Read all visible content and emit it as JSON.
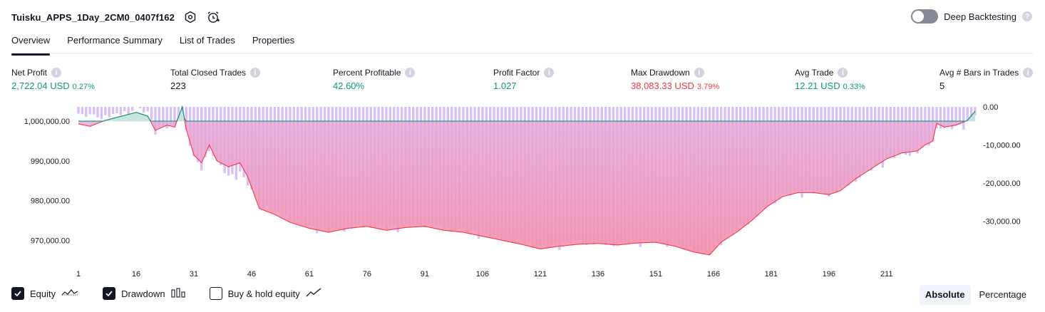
{
  "header": {
    "strategy_name": "Tuisku_APPS_1Day_2CM0_0407f162",
    "settings_icon": "settings-hexagon-icon",
    "alert_icon": "alarm-clock-plus-icon",
    "deep_backtesting_label": "Deep Backtesting",
    "deep_backtesting_enabled": false
  },
  "tabs": [
    {
      "label": "Overview",
      "active": true
    },
    {
      "label": "Performance Summary",
      "active": false
    },
    {
      "label": "List of Trades",
      "active": false
    },
    {
      "label": "Properties",
      "active": false
    }
  ],
  "metrics": {
    "net_profit": {
      "label": "Net Profit",
      "value": "2,722.04 USD",
      "pct": "0.27%"
    },
    "total_closed_trades": {
      "label": "Total Closed Trades",
      "value": "223"
    },
    "percent_profitable": {
      "label": "Percent Profitable",
      "value": "42.60%"
    },
    "profit_factor": {
      "label": "Profit Factor",
      "value": "1.027"
    },
    "max_drawdown": {
      "label": "Max Drawdown",
      "value": "38,083.33 USD",
      "pct": "3.79%"
    },
    "avg_trade": {
      "label": "Avg Trade",
      "value": "12.21 USD",
      "pct": "0.33%"
    },
    "avg_bars": {
      "label": "Avg # Bars in Trades",
      "value": "5"
    }
  },
  "colors": {
    "profit": "#089981",
    "loss": "#f23645",
    "equity_line": "#f23645",
    "equity_above_fill": "#b2dfd4",
    "drawdown_bar": "#d8bff5",
    "loss_fill_top": "#e7a6d8",
    "loss_fill_bottom": "#f48aa6"
  },
  "chart_data": {
    "type": "area",
    "x_ticks": [
      "1",
      "16",
      "31",
      "46",
      "61",
      "76",
      "91",
      "106",
      "121",
      "136",
      "151",
      "166",
      "181",
      "196",
      "211"
    ],
    "x_range": [
      1,
      223
    ],
    "left_axis": {
      "ticks": [
        "1,000,000.00",
        "990,000.00",
        "980,000.00",
        "970,000.00"
      ],
      "tick_values": [
        1000000,
        990000,
        980000,
        970000
      ],
      "range": [
        965200,
        1003600
      ],
      "baseline": 1000000
    },
    "right_axis": {
      "ticks": [
        "0.00",
        "-10,000.00",
        "-20,000.00",
        "-30,000.00"
      ],
      "tick_values": [
        0,
        -10000,
        -20000,
        -30000
      ],
      "range": [
        -40000,
        0
      ]
    },
    "series": [
      {
        "name": "Equity",
        "knots": [
          [
            1,
            999300
          ],
          [
            4,
            998700
          ],
          [
            8,
            1000200
          ],
          [
            12,
            1001200
          ],
          [
            16,
            1002200
          ],
          [
            19,
            1001300
          ],
          [
            21,
            997700
          ],
          [
            24,
            999000
          ],
          [
            26,
            998500
          ],
          [
            28,
            1003600
          ],
          [
            29,
            998000
          ],
          [
            31,
            991500
          ],
          [
            33,
            989500
          ],
          [
            35,
            994000
          ],
          [
            37,
            990000
          ],
          [
            40,
            988500
          ],
          [
            43,
            989500
          ],
          [
            45,
            986000
          ],
          [
            48,
            978000
          ],
          [
            52,
            976500
          ],
          [
            56,
            974500
          ],
          [
            61,
            973000
          ],
          [
            66,
            972000
          ],
          [
            71,
            973000
          ],
          [
            76,
            973500
          ],
          [
            81,
            972500
          ],
          [
            86,
            973200
          ],
          [
            91,
            973500
          ],
          [
            96,
            972500
          ],
          [
            101,
            972000
          ],
          [
            106,
            971000
          ],
          [
            111,
            970000
          ],
          [
            116,
            969000
          ],
          [
            121,
            967800
          ],
          [
            126,
            968500
          ],
          [
            131,
            969000
          ],
          [
            136,
            969200
          ],
          [
            141,
            968800
          ],
          [
            146,
            969300
          ],
          [
            151,
            969500
          ],
          [
            156,
            968500
          ],
          [
            161,
            967000
          ],
          [
            165,
            966300
          ],
          [
            168,
            969500
          ],
          [
            172,
            972000
          ],
          [
            176,
            975000
          ],
          [
            180,
            978500
          ],
          [
            184,
            981000
          ],
          [
            188,
            982000
          ],
          [
            192,
            982000
          ],
          [
            196,
            981500
          ],
          [
            199,
            982500
          ],
          [
            203,
            985500
          ],
          [
            207,
            988000
          ],
          [
            211,
            990500
          ],
          [
            215,
            992000
          ],
          [
            219,
            992500
          ],
          [
            221,
            994000
          ],
          [
            223,
            995000
          ],
          [
            224,
            999500
          ],
          [
            226,
            998500
          ],
          [
            229,
            999000
          ],
          [
            232,
            1000200
          ],
          [
            234,
            1002500
          ]
        ]
      },
      {
        "name": "Drawdown",
        "knots": [
          [
            1,
            -1800
          ],
          [
            5,
            -2000
          ],
          [
            8,
            -2200
          ],
          [
            12,
            -1500
          ],
          [
            16,
            0
          ],
          [
            19,
            -1200
          ],
          [
            21,
            -5500
          ],
          [
            24,
            -5000
          ],
          [
            26,
            -5000
          ],
          [
            28,
            0
          ],
          [
            29,
            -6000
          ],
          [
            31,
            -13000
          ],
          [
            33,
            -16000
          ],
          [
            35,
            -10500
          ],
          [
            37,
            -14000
          ],
          [
            40,
            -18000
          ],
          [
            43,
            -17000
          ],
          [
            45,
            -20000
          ],
          [
            48,
            -25000
          ],
          [
            52,
            -27000
          ],
          [
            56,
            -29000
          ],
          [
            61,
            -31000
          ],
          [
            66,
            -32000
          ],
          [
            71,
            -31500
          ],
          [
            76,
            -30500
          ],
          [
            81,
            -31500
          ],
          [
            86,
            -30800
          ],
          [
            91,
            -30500
          ],
          [
            96,
            -31500
          ],
          [
            101,
            -32000
          ],
          [
            106,
            -33000
          ],
          [
            111,
            -34000
          ],
          [
            116,
            -35000
          ],
          [
            121,
            -36500
          ],
          [
            126,
            -35800
          ],
          [
            131,
            -35000
          ],
          [
            136,
            -35500
          ],
          [
            141,
            -35500
          ],
          [
            146,
            -35000
          ],
          [
            151,
            -35000
          ],
          [
            156,
            -36000
          ],
          [
            161,
            -37000
          ],
          [
            165,
            -38083
          ],
          [
            168,
            -34500
          ],
          [
            172,
            -32000
          ],
          [
            176,
            -29000
          ],
          [
            180,
            -25500
          ],
          [
            184,
            -23000
          ],
          [
            188,
            -22000
          ],
          [
            192,
            -22000
          ],
          [
            196,
            -22500
          ],
          [
            199,
            -21500
          ],
          [
            203,
            -18500
          ],
          [
            207,
            -16000
          ],
          [
            211,
            -13500
          ],
          [
            215,
            -12000
          ],
          [
            219,
            -11500
          ],
          [
            221,
            -10000
          ],
          [
            223,
            -9000
          ],
          [
            224,
            -4500
          ],
          [
            226,
            -5500
          ],
          [
            229,
            -5000
          ],
          [
            232,
            -3800
          ],
          [
            234,
            -1500
          ]
        ]
      }
    ],
    "legend": [
      {
        "label": "Equity",
        "checked": true,
        "icon": "equity-line-icon"
      },
      {
        "label": "Drawdown",
        "checked": true,
        "icon": "drawdown-bars-icon"
      },
      {
        "label": "Buy & hold equity",
        "checked": false,
        "icon": "trend-line-icon"
      }
    ],
    "grid": false
  },
  "view_mode": {
    "options": [
      "Absolute",
      "Percentage"
    ],
    "selected": "Absolute"
  }
}
